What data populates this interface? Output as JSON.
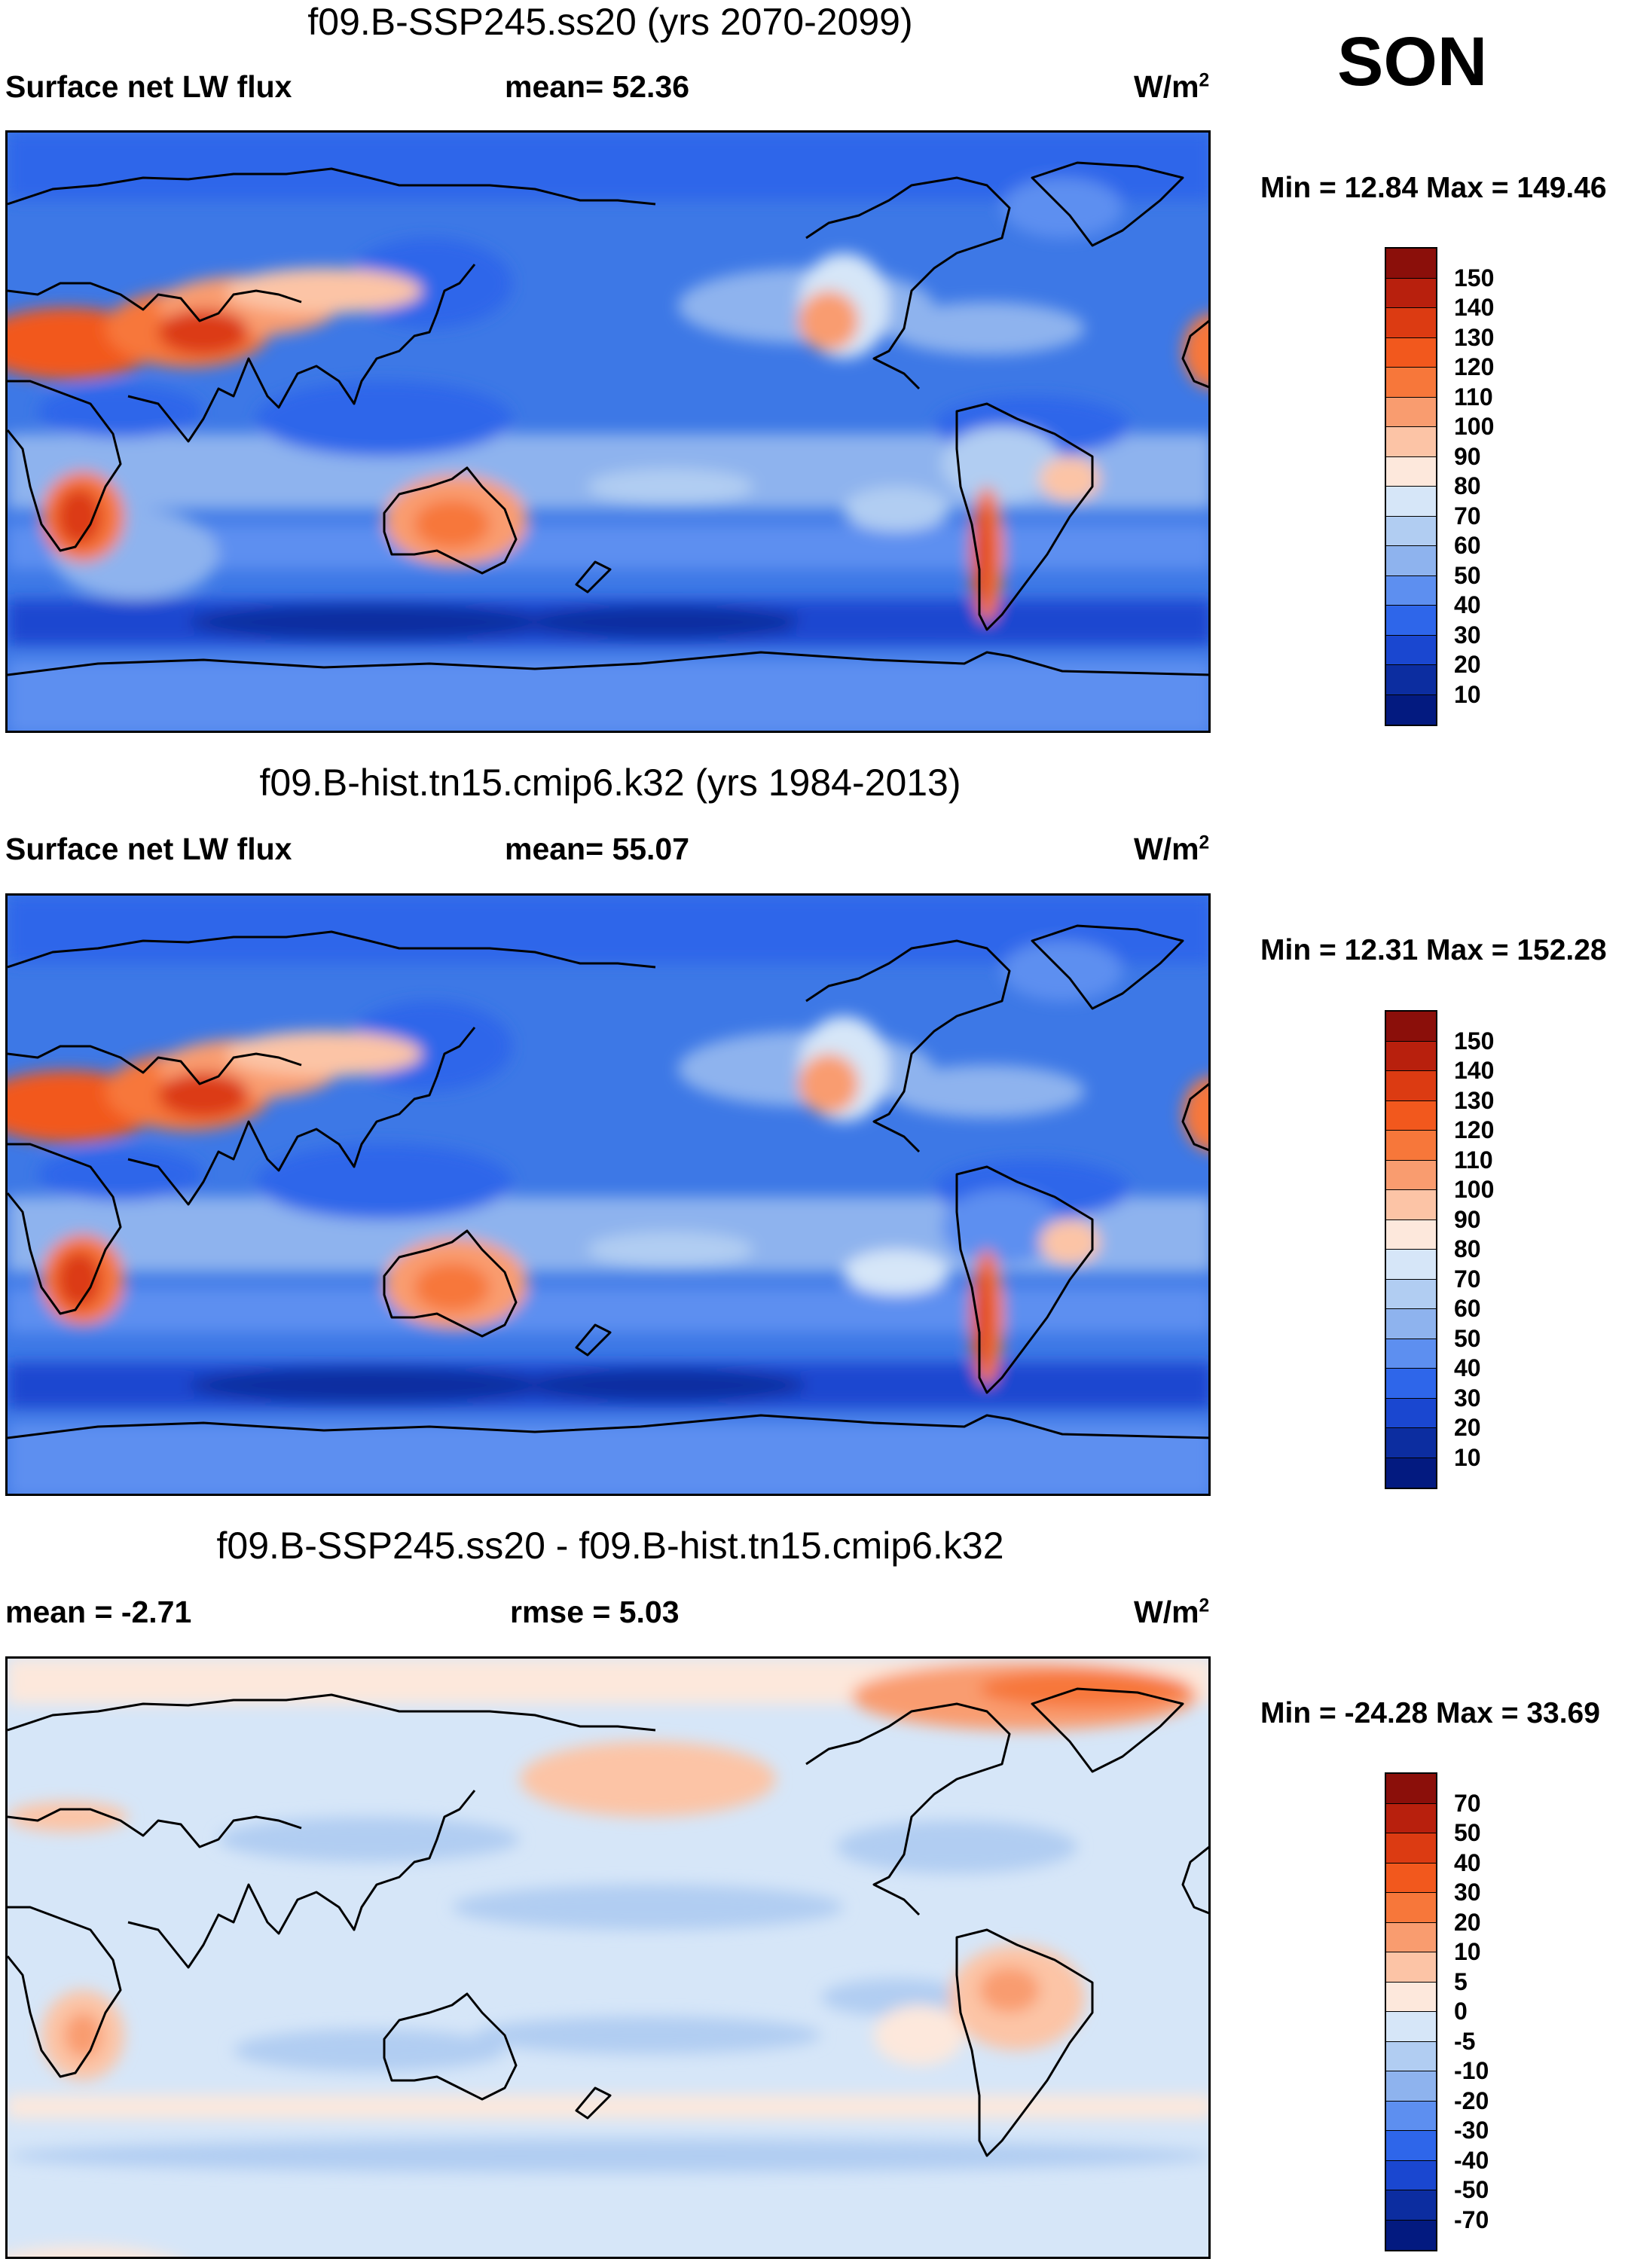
{
  "season": "SON",
  "panels": [
    {
      "title": "f09.B-SSP245.ss20 (yrs 2070-2099)",
      "left_label": "Surface net LW flux",
      "center_label": "mean=  52.36",
      "units_base": "W/m",
      "units_exp": "2",
      "minmax": "Min =  12.84 Max = 149.46"
    },
    {
      "title": "f09.B-hist.tn15.cmip6.k32 (yrs 1984-2013)",
      "left_label": "Surface net LW flux",
      "center_label": "mean=  55.07",
      "units_base": "W/m",
      "units_exp": "2",
      "minmax": "Min =  12.31 Max = 152.28"
    },
    {
      "title": "f09.B-SSP245.ss20 - f09.B-hist.tn15.cmip6.k32",
      "left_label": "mean =  -2.71",
      "center_label": "rmse =    5.03",
      "units_base": "W/m",
      "units_exp": "2",
      "minmax": "Min = -24.28 Max =  33.69"
    }
  ],
  "colorbars": {
    "flux": {
      "labels": [
        "150",
        "140",
        "130",
        "120",
        "110",
        "100",
        "90",
        "80",
        "70",
        "60",
        "50",
        "40",
        "30",
        "20",
        "10"
      ],
      "colors": [
        "#8b0f0a",
        "#b8200d",
        "#dc3b12",
        "#f2581d",
        "#f7773a",
        "#f99c6f",
        "#fcc4a6",
        "#fde8dc",
        "#d6e6f8",
        "#b1cdf2",
        "#8eb3ee",
        "#5d8ff0",
        "#2e66ea",
        "#1a47d0",
        "#0c2da0",
        "#031a80"
      ]
    },
    "diff": {
      "labels": [
        "70",
        "50",
        "40",
        "30",
        "20",
        "10",
        "5",
        "0",
        "-5",
        "-10",
        "-20",
        "-30",
        "-40",
        "-50",
        "-70"
      ],
      "colors": [
        "#8b0f0a",
        "#b8200d",
        "#dc3b12",
        "#f2581d",
        "#f7773a",
        "#f99c6f",
        "#fcc4a6",
        "#fde8dc",
        "#d6e6f8",
        "#b1cdf2",
        "#8eb3ee",
        "#5d8ff0",
        "#2e66ea",
        "#1a47d0",
        "#0c2da0",
        "#031a80"
      ]
    }
  }
}
